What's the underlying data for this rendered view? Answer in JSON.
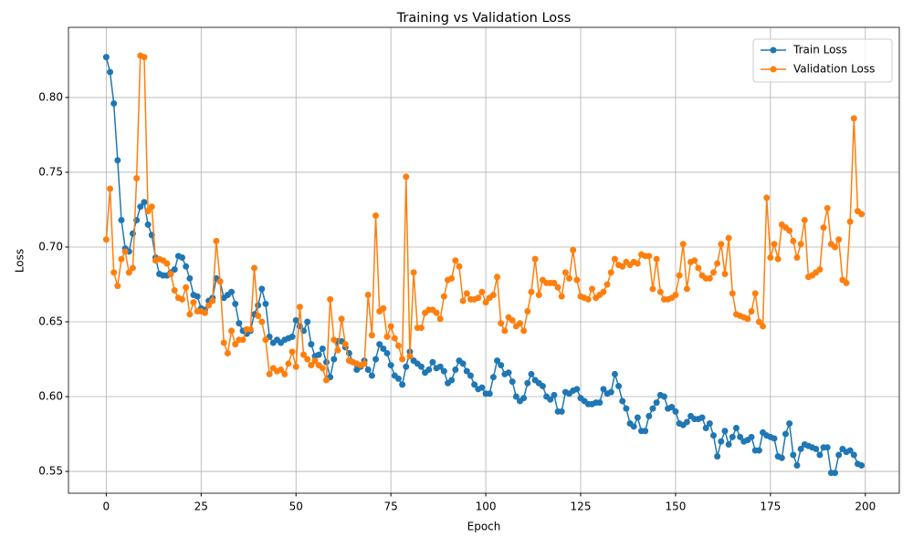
{
  "chart_data": {
    "type": "line",
    "title": "Training vs Validation Loss",
    "xlabel": "Epoch",
    "ylabel": "Loss",
    "x": [
      0,
      1,
      2,
      3,
      4,
      5,
      6,
      7,
      8,
      9,
      10,
      11,
      12,
      13,
      14,
      15,
      16,
      17,
      18,
      19,
      20,
      21,
      22,
      23,
      24,
      25,
      26,
      27,
      28,
      29,
      30,
      31,
      32,
      33,
      34,
      35,
      36,
      37,
      38,
      39,
      40,
      41,
      42,
      43,
      44,
      45,
      46,
      47,
      48,
      49,
      50,
      51,
      52,
      53,
      54,
      55,
      56,
      57,
      58,
      59,
      60,
      61,
      62,
      63,
      64,
      65,
      66,
      67,
      68,
      69,
      70,
      71,
      72,
      73,
      74,
      75,
      76,
      77,
      78,
      79,
      80,
      81,
      82,
      83,
      84,
      85,
      86,
      87,
      88,
      89,
      90,
      91,
      92,
      93,
      94,
      95,
      96,
      97,
      98,
      99,
      100,
      101,
      102,
      103,
      104,
      105,
      106,
      107,
      108,
      109,
      110,
      111,
      112,
      113,
      114,
      115,
      116,
      117,
      118,
      119,
      120,
      121,
      122,
      123,
      124,
      125,
      126,
      127,
      128,
      129,
      130,
      131,
      132,
      133,
      134,
      135,
      136,
      137,
      138,
      139,
      140,
      141,
      142,
      143,
      144,
      145,
      146,
      147,
      148,
      149,
      150,
      151,
      152,
      153,
      154,
      155,
      156,
      157,
      158,
      159,
      160,
      161,
      162,
      163,
      164,
      165,
      166,
      167,
      168,
      169,
      170,
      171,
      172,
      173,
      174,
      175,
      176,
      177,
      178,
      179,
      180,
      181,
      182,
      183,
      184,
      185,
      186,
      187,
      188,
      189,
      190,
      191,
      192,
      193,
      194,
      195,
      196,
      197,
      198,
      199
    ],
    "series": [
      {
        "name": "Train Loss",
        "color": "#1f77b4",
        "values": [
          0.827,
          0.817,
          0.796,
          0.758,
          0.718,
          0.699,
          0.697,
          0.709,
          0.718,
          0.727,
          0.73,
          0.715,
          0.708,
          0.693,
          0.682,
          0.681,
          0.681,
          0.683,
          0.685,
          0.694,
          0.693,
          0.687,
          0.679,
          0.668,
          0.667,
          0.659,
          0.658,
          0.664,
          0.666,
          0.679,
          0.677,
          0.666,
          0.668,
          0.67,
          0.662,
          0.649,
          0.644,
          0.642,
          0.644,
          0.655,
          0.661,
          0.672,
          0.662,
          0.64,
          0.636,
          0.638,
          0.636,
          0.638,
          0.639,
          0.64,
          0.651,
          0.647,
          0.644,
          0.65,
          0.635,
          0.627,
          0.628,
          0.632,
          0.623,
          0.613,
          0.625,
          0.637,
          0.637,
          0.633,
          0.629,
          0.623,
          0.618,
          0.62,
          0.624,
          0.618,
          0.614,
          0.625,
          0.635,
          0.632,
          0.629,
          0.621,
          0.614,
          0.612,
          0.608,
          0.62,
          0.63,
          0.624,
          0.622,
          0.62,
          0.616,
          0.618,
          0.623,
          0.619,
          0.62,
          0.617,
          0.609,
          0.611,
          0.618,
          0.624,
          0.622,
          0.617,
          0.614,
          0.608,
          0.605,
          0.606,
          0.602,
          0.602,
          0.613,
          0.624,
          0.621,
          0.615,
          0.616,
          0.61,
          0.6,
          0.597,
          0.599,
          0.609,
          0.615,
          0.611,
          0.609,
          0.607,
          0.6,
          0.598,
          0.601,
          0.59,
          0.59,
          0.603,
          0.602,
          0.604,
          0.605,
          0.599,
          0.597,
          0.595,
          0.595,
          0.596,
          0.596,
          0.605,
          0.602,
          0.603,
          0.615,
          0.607,
          0.597,
          0.592,
          0.582,
          0.58,
          0.586,
          0.577,
          0.577,
          0.587,
          0.592,
          0.596,
          0.601,
          0.6,
          0.592,
          0.593,
          0.59,
          0.582,
          0.581,
          0.583,
          0.587,
          0.585,
          0.585,
          0.586,
          0.579,
          0.582,
          0.574,
          0.56,
          0.57,
          0.577,
          0.568,
          0.573,
          0.579,
          0.573,
          0.57,
          0.571,
          0.573,
          0.564,
          0.564,
          0.576,
          0.574,
          0.573,
          0.572,
          0.56,
          0.559,
          0.575,
          0.582,
          0.561,
          0.554,
          0.565,
          0.568,
          0.567,
          0.566,
          0.565,
          0.561,
          0.566,
          0.566,
          0.549,
          0.549,
          0.561,
          0.565,
          0.563,
          0.564,
          0.561,
          0.555,
          0.554
        ]
      },
      {
        "name": "Validation Loss",
        "color": "#ff7f0e",
        "values": [
          0.705,
          0.739,
          0.683,
          0.674,
          0.692,
          0.697,
          0.683,
          0.686,
          0.746,
          0.828,
          0.827,
          0.724,
          0.727,
          0.691,
          0.692,
          0.691,
          0.689,
          0.682,
          0.671,
          0.666,
          0.665,
          0.673,
          0.655,
          0.663,
          0.657,
          0.657,
          0.656,
          0.661,
          0.664,
          0.704,
          0.677,
          0.636,
          0.629,
          0.644,
          0.635,
          0.638,
          0.638,
          0.645,
          0.645,
          0.686,
          0.654,
          0.65,
          0.638,
          0.615,
          0.619,
          0.617,
          0.618,
          0.615,
          0.622,
          0.63,
          0.62,
          0.66,
          0.628,
          0.625,
          0.621,
          0.624,
          0.621,
          0.619,
          0.611,
          0.665,
          0.638,
          0.631,
          0.652,
          0.635,
          0.624,
          0.623,
          0.622,
          0.621,
          0.622,
          0.668,
          0.641,
          0.721,
          0.657,
          0.659,
          0.64,
          0.647,
          0.639,
          0.634,
          0.625,
          0.747,
          0.627,
          0.683,
          0.646,
          0.646,
          0.656,
          0.658,
          0.658,
          0.656,
          0.652,
          0.667,
          0.678,
          0.679,
          0.691,
          0.687,
          0.664,
          0.669,
          0.665,
          0.665,
          0.666,
          0.67,
          0.663,
          0.666,
          0.668,
          0.68,
          0.649,
          0.644,
          0.653,
          0.651,
          0.647,
          0.649,
          0.644,
          0.657,
          0.67,
          0.692,
          0.668,
          0.678,
          0.676,
          0.676,
          0.676,
          0.673,
          0.667,
          0.683,
          0.679,
          0.698,
          0.678,
          0.667,
          0.666,
          0.665,
          0.672,
          0.666,
          0.668,
          0.67,
          0.675,
          0.683,
          0.692,
          0.688,
          0.687,
          0.69,
          0.688,
          0.69,
          0.689,
          0.695,
          0.694,
          0.694,
          0.672,
          0.692,
          0.67,
          0.665,
          0.665,
          0.666,
          0.668,
          0.681,
          0.702,
          0.672,
          0.69,
          0.691,
          0.686,
          0.681,
          0.679,
          0.679,
          0.683,
          0.689,
          0.702,
          0.682,
          0.706,
          0.669,
          0.655,
          0.654,
          0.653,
          0.652,
          0.657,
          0.669,
          0.65,
          0.647,
          0.733,
          0.693,
          0.702,
          0.692,
          0.715,
          0.713,
          0.711,
          0.704,
          0.693,
          0.702,
          0.718,
          0.68,
          0.681,
          0.683,
          0.685,
          0.713,
          0.726,
          0.702,
          0.7,
          0.705,
          0.678,
          0.676,
          0.717,
          0.786,
          0.724,
          0.722
        ]
      }
    ],
    "xlim": [
      -9.95,
      208.95
    ],
    "ylim": [
      0.5354,
      0.8469
    ],
    "xticks": [
      0,
      25,
      50,
      75,
      100,
      125,
      150,
      175,
      200
    ],
    "yticks": [
      0.55,
      {
        "value": 0.6,
        "label": "0.60"
      },
      0.65,
      {
        "value": 0.7,
        "label": "0.70"
      },
      0.75,
      {
        "value": 0.8,
        "label": "0.80"
      }
    ],
    "grid": true,
    "legend": "upper right",
    "markers": true
  }
}
